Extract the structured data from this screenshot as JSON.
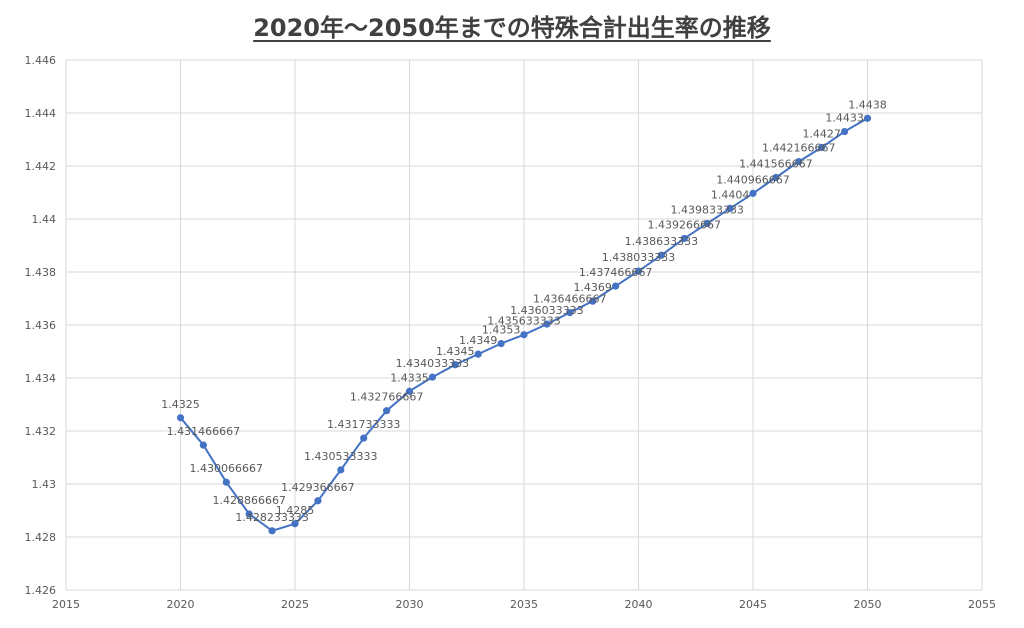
{
  "chart_data": {
    "type": "line",
    "title": "2020年～2050年までの特殊合計出生率の推移",
    "xlabel": "",
    "ylabel": "",
    "xlim": [
      2015,
      2055
    ],
    "ylim": [
      1.426,
      1.446
    ],
    "x_ticks": [
      "2015",
      "2020",
      "2025",
      "2030",
      "2035",
      "2040",
      "2045",
      "2050",
      "2055"
    ],
    "y_ticks": [
      "1.426",
      "1.428",
      "1.43",
      "1.432",
      "1.434",
      "1.436",
      "1.438",
      "1.44",
      "1.442",
      "1.444",
      "1.446"
    ],
    "grid": true,
    "legend": "none",
    "color": "#4472c4",
    "x": [
      2020,
      2021,
      2022,
      2023,
      2024,
      2025,
      2026,
      2027,
      2028,
      2029,
      2030,
      2031,
      2032,
      2033,
      2034,
      2035,
      2036,
      2037,
      2038,
      2039,
      2040,
      2041,
      2042,
      2043,
      2044,
      2045,
      2046,
      2047,
      2048,
      2049,
      2050
    ],
    "y": [
      1.4325,
      1.431466667,
      1.430066667,
      1.428866667,
      1.428233333,
      1.4285,
      1.429366667,
      1.430533333,
      1.431733333,
      1.432766667,
      1.4335,
      1.434033333,
      1.4345,
      1.4349,
      1.4353,
      1.435633333,
      1.436033333,
      1.436466667,
      1.4369,
      1.437466667,
      1.438033333,
      1.438633333,
      1.439266667,
      1.439833333,
      1.4404,
      1.440966667,
      1.441566667,
      1.442166667,
      1.4427,
      1.4433,
      1.4438
    ],
    "labels": [
      "1.4325",
      "1.431466667",
      "1.430066667",
      "1.428866667",
      "1.428233333",
      "1.4285",
      "1.429366667",
      "1.430533333",
      "1.431733333",
      "1.432766667",
      "1.4335",
      "1.434033333",
      "1.4345",
      "1.4349",
      "1.4353",
      "1.435633333",
      "1.436033333",
      "1.436466667",
      "1.4369",
      "1.437466667",
      "1.438033333",
      "1.438633333",
      "1.439266667",
      "1.439833333",
      "1.4404",
      "1.440966667",
      "1.441566667",
      "1.442166667",
      "1.4427",
      "1.4433",
      "1.4438"
    ]
  }
}
